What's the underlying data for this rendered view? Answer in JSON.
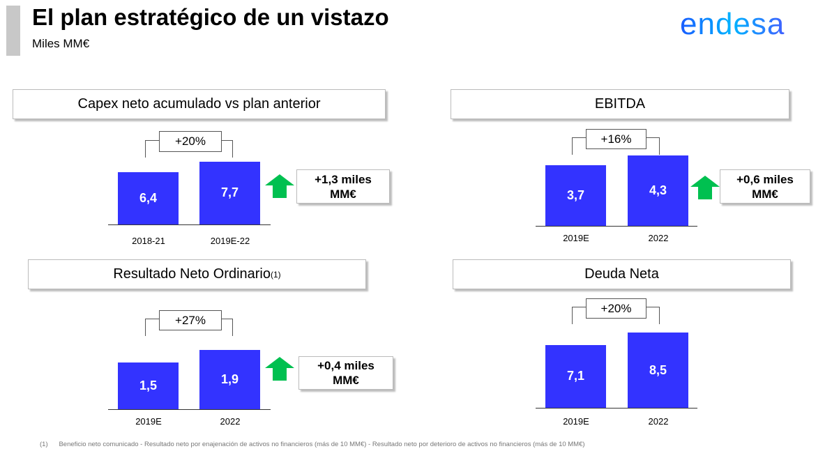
{
  "header": {
    "title": "El plan estratégico de un vistazo",
    "subtitle": "Miles MM€",
    "logo": "endesa"
  },
  "colors": {
    "bar": "#3333ff",
    "arrow": "#00c050"
  },
  "chart_data": [
    {
      "type": "bar",
      "title": "Capex neto acumulado vs plan anterior",
      "categories": [
        "2018-21",
        "2019E-22"
      ],
      "values": [
        6.4,
        7.7
      ],
      "labels": [
        "6,4",
        "7,7"
      ],
      "change_label": "+20%",
      "delta_label": [
        "+1,3 miles",
        "MM€"
      ]
    },
    {
      "type": "bar",
      "title": "EBITDA",
      "categories": [
        "2019E",
        "2022"
      ],
      "values": [
        3.7,
        4.3
      ],
      "labels": [
        "3,7",
        "4,3"
      ],
      "change_label": "+16%",
      "delta_label": [
        "+0,6 miles",
        "MM€"
      ]
    },
    {
      "type": "bar",
      "title": "Resultado Neto Ordinario",
      "title_sup": "(1)",
      "categories": [
        "2019E",
        "2022"
      ],
      "values": [
        1.5,
        1.9
      ],
      "labels": [
        "1,5",
        "1,9"
      ],
      "change_label": "+27%",
      "delta_label": [
        "+0,4 miles",
        "MM€"
      ]
    },
    {
      "type": "bar",
      "title": "Deuda Neta",
      "categories": [
        "2019E",
        "2022"
      ],
      "values": [
        7.1,
        8.5
      ],
      "labels": [
        "7,1",
        "8,5"
      ],
      "change_label": "+20%"
    }
  ],
  "footnote": {
    "marker": "(1)",
    "text": "Beneficio neto comunicado - Resultado neto por enajenación de activos no financieros (más de 10 MM€) - Resultado neto por deterioro de activos no financieros  (más de 10 MM€)"
  }
}
